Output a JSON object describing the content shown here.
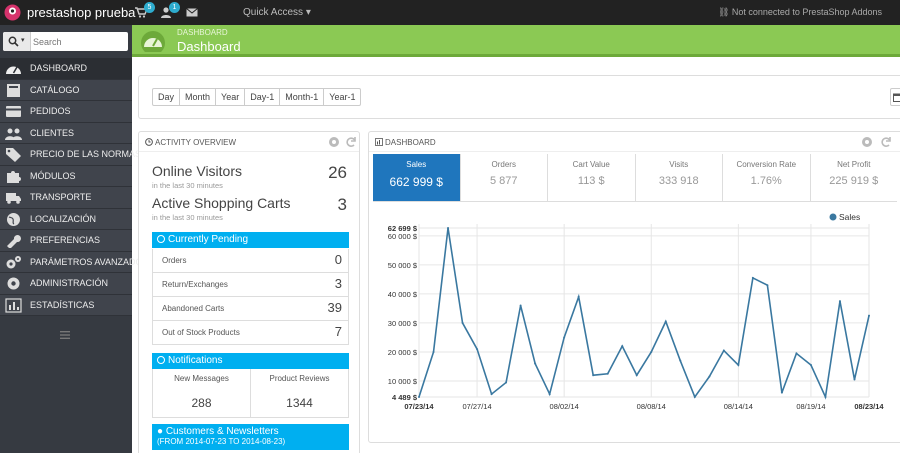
{
  "topbar": {
    "brand": "prestashop prueba",
    "orders_badge": "5",
    "customers_badge": "1",
    "quick_access": "Quick Access",
    "connection_status": "Not connected to PrestaShop Addons"
  },
  "sidebar": {
    "search_placeholder": "Search",
    "items": [
      {
        "label": "DASHBOARD",
        "icon": "tachometer-icon"
      },
      {
        "label": "CATÁLOGO",
        "icon": "book-icon"
      },
      {
        "label": "PEDIDOS",
        "icon": "credit-card-icon"
      },
      {
        "label": "CLIENTES",
        "icon": "users-icon"
      },
      {
        "label": "PRECIO DE LAS NORMAS",
        "icon": "tag-icon"
      },
      {
        "label": "MÓDULOS",
        "icon": "puzzle-icon"
      },
      {
        "label": "TRANSPORTE",
        "icon": "truck-icon"
      },
      {
        "label": "LOCALIZACIÓN",
        "icon": "globe-icon"
      },
      {
        "label": "PREFERENCIAS",
        "icon": "wrench-icon"
      },
      {
        "label": "PARÁMETROS AVANZADOS",
        "icon": "cogs-icon"
      },
      {
        "label": "ADMINISTRACIÓN",
        "icon": "cog-icon"
      },
      {
        "label": "ESTADÍSTICAS",
        "icon": "bar-chart-icon"
      }
    ]
  },
  "header": {
    "breadcrumb": "DASHBOARD",
    "title": "Dashboard"
  },
  "date_range": {
    "buttons": [
      "Day",
      "Month",
      "Year",
      "Day-1",
      "Month-1",
      "Year-1"
    ]
  },
  "activity": {
    "title": "ACTIVITY OVERVIEW",
    "online_visitors_label": "Online Visitors",
    "online_visitors_sub": "in the last 30 minutes",
    "online_visitors_value": "26",
    "active_carts_label": "Active Shopping Carts",
    "active_carts_sub": "in the last 30 minutes",
    "active_carts_value": "3",
    "pending_title": "Currently Pending",
    "pending": [
      {
        "label": "Orders",
        "value": "0"
      },
      {
        "label": "Return/Exchanges",
        "value": "3"
      },
      {
        "label": "Abandoned Carts",
        "value": "39"
      },
      {
        "label": "Out of Stock Products",
        "value": "7"
      }
    ],
    "notifications_title": "Notifications",
    "notifications": [
      {
        "label": "New Messages",
        "value": "288"
      },
      {
        "label": "Product Reviews",
        "value": "1344"
      }
    ],
    "customers_title": "Customers & Newsletters",
    "customers_range": "(FROM 2014-07-23 TO 2014-08-23)"
  },
  "dashboard": {
    "title": "DASHBOARD",
    "kpis": [
      {
        "label": "Sales",
        "value": "662 999 $",
        "selected": true
      },
      {
        "label": "Orders",
        "value": "5 877"
      },
      {
        "label": "Cart Value",
        "value": "113 $"
      },
      {
        "label": "Visits",
        "value": "333 918"
      },
      {
        "label": "Conversion Rate",
        "value": "1.76%"
      },
      {
        "label": "Net Profit",
        "value": "225 919 $"
      }
    ]
  },
  "colors": {
    "header_green": "#8bc954",
    "accent_blue": "#00aff0",
    "kpi_selected": "#1f76bd",
    "line": "#3a78a0"
  },
  "chart_data": {
    "type": "line",
    "legend": "top-right",
    "series": [
      {
        "name": "Sales",
        "x": [
          "2014-07-23",
          "2014-07-24",
          "2014-07-25",
          "2014-07-26",
          "2014-07-27",
          "2014-07-28",
          "2014-07-29",
          "2014-07-30",
          "2014-07-31",
          "2014-08-01",
          "2014-08-02",
          "2014-08-03",
          "2014-08-04",
          "2014-08-05",
          "2014-08-06",
          "2014-08-07",
          "2014-08-08",
          "2014-08-09",
          "2014-08-10",
          "2014-08-11",
          "2014-08-12",
          "2014-08-13",
          "2014-08-14",
          "2014-08-15",
          "2014-08-16",
          "2014-08-17",
          "2014-08-18",
          "2014-08-19",
          "2014-08-20",
          "2014-08-21",
          "2014-08-22",
          "2014-08-23"
        ],
        "values": [
          4489,
          20000,
          62699,
          30000,
          21000,
          5500,
          9500,
          36000,
          16000,
          5500,
          25000,
          39000,
          12000,
          12500,
          22000,
          12000,
          20000,
          30500,
          17000,
          4500,
          11500,
          20500,
          15500,
          45500,
          43000,
          6000,
          19500,
          15500,
          4500,
          37500,
          10500,
          32500
        ]
      }
    ],
    "x_tick_labels": [
      "07/23/14",
      "07/27/14",
      "08/02/14",
      "08/08/14",
      "08/14/14",
      "08/19/14",
      "08/23/14"
    ],
    "y_tick_labels": [
      "62 699 $",
      "60 000 $",
      "50 000 $",
      "40 000 $",
      "30 000 $",
      "20 000 $",
      "10 000 $",
      "4 489 $"
    ],
    "ylim": [
      4489,
      62699
    ],
    "grid": true
  }
}
